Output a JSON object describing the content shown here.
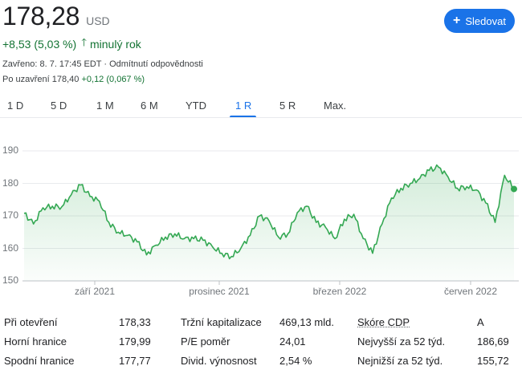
{
  "quote": {
    "price": "178,28",
    "currency": "USD",
    "change": "+8,53 (5,03 %)",
    "change_period": "minulý rok",
    "closed_info": "Zavřeno: 8. 7. 17:45 EDT · Odmítnutí odpovědnosti",
    "after_hours_label": "Po uzavření 178,40",
    "after_hours_change": "+0,12 (0,067 %)"
  },
  "follow_button": {
    "label": "Sledovat",
    "color": "#1a73e8"
  },
  "tabs": [
    {
      "label": "1 D"
    },
    {
      "label": "5 D"
    },
    {
      "label": "1 M"
    },
    {
      "label": "6 M"
    },
    {
      "label": "YTD"
    },
    {
      "label": "1 R",
      "active": true
    },
    {
      "label": "5 R"
    },
    {
      "label": "Max."
    }
  ],
  "chart_data": {
    "type": "area",
    "y_ticks": [
      "190",
      "180",
      "170",
      "160",
      "150"
    ],
    "ylim": [
      150,
      190
    ],
    "x_ticks": [
      "září 2021",
      "prosinec 2021",
      "březen 2022",
      "červen 2022"
    ],
    "x": [
      "2021-07-09",
      "2021-07-15",
      "2021-07-22",
      "2021-07-29",
      "2021-08-05",
      "2021-08-12",
      "2021-08-19",
      "2021-08-26",
      "2021-09-02",
      "2021-09-09",
      "2021-09-16",
      "2021-09-23",
      "2021-09-30",
      "2021-10-07",
      "2021-10-14",
      "2021-10-21",
      "2021-10-28",
      "2021-11-04",
      "2021-11-11",
      "2021-11-18",
      "2021-11-25",
      "2021-12-02",
      "2021-12-09",
      "2021-12-16",
      "2021-12-23",
      "2021-12-30",
      "2022-01-06",
      "2022-01-13",
      "2022-01-20",
      "2022-01-27",
      "2022-02-03",
      "2022-02-10",
      "2022-02-17",
      "2022-02-24",
      "2022-03-03",
      "2022-03-10",
      "2022-03-17",
      "2022-03-24",
      "2022-03-31",
      "2022-04-07",
      "2022-04-14",
      "2022-04-21",
      "2022-04-28",
      "2022-05-05",
      "2022-05-12",
      "2022-05-19",
      "2022-05-26",
      "2022-06-02",
      "2022-06-09",
      "2022-06-16",
      "2022-06-23",
      "2022-06-30",
      "2022-07-08"
    ],
    "series": [
      {
        "color": "#34a853",
        "values": [
          170.8,
          167.5,
          172.5,
          173.0,
          172.8,
          176.5,
          179.5,
          176.0,
          174.5,
          168.0,
          165.0,
          164.0,
          162.0,
          158.0,
          161.0,
          163.5,
          164.5,
          163.0,
          163.0,
          162.5,
          160.5,
          158.5,
          157.5,
          160.0,
          164.0,
          170.0,
          168.5,
          163.5,
          164.5,
          171.0,
          173.0,
          168.0,
          166.5,
          163.0,
          169.0,
          170.5,
          163.0,
          158.5,
          167.5,
          175.5,
          178.5,
          180.0,
          181.5,
          184.0,
          185.0,
          182.0,
          178.5,
          179.0,
          178.0,
          174.0,
          168.0,
          182.5,
          178.28
        ]
      }
    ],
    "last_point_color": "#34a853"
  },
  "stats": [
    [
      {
        "label": "Při otevření",
        "value": "178,33"
      },
      {
        "label": "Tržní kapitalizace",
        "value": "469,13 mld."
      },
      {
        "label": "Skóre CDP",
        "value": "A",
        "link": true
      }
    ],
    [
      {
        "label": "Horní hranice",
        "value": "179,99"
      },
      {
        "label": "P/E poměr",
        "value": "24,01"
      },
      {
        "label": "Nejvyšší za 52 týd.",
        "value": "186,69"
      }
    ],
    [
      {
        "label": "Spodní hranice",
        "value": "177,77"
      },
      {
        "label": "Divid. výnosnost",
        "value": "2,54 %"
      },
      {
        "label": "Nejnižší za 52 týd.",
        "value": "155,72"
      }
    ]
  ]
}
